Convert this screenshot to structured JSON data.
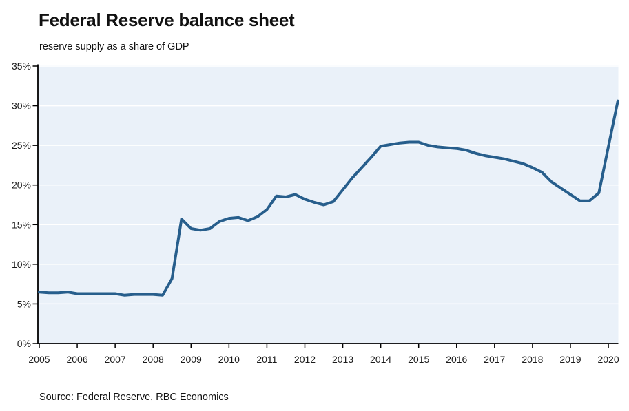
{
  "chart_data": {
    "type": "line",
    "title": "Federal Reserve balance sheet",
    "subtitle": "reserve supply as a share of GDP",
    "source": "Source: Federal Reserve, RBC Economics",
    "xlabel": "",
    "ylabel": "",
    "legend": "none",
    "grid": "horizontal white gridlines on light blue plot background",
    "xlim": [
      2005,
      2020.3
    ],
    "ylim": [
      0,
      35
    ],
    "x_ticks": [
      "2005",
      "2006",
      "2007",
      "2008",
      "2009",
      "2010",
      "2011",
      "2012",
      "2013",
      "2014",
      "2015",
      "2016",
      "2017",
      "2018",
      "2019",
      "2020"
    ],
    "y_ticks": [
      "0%",
      "5%",
      "10%",
      "15%",
      "20%",
      "25%",
      "30%",
      "35%"
    ],
    "colors": {
      "line": "#275e8c",
      "plot_bg": "#eaf1f9",
      "grid": "#ffffff",
      "axis": "#000000",
      "text": "#1a1a1a"
    },
    "series": [
      {
        "name": "Federal Reserve balance sheet, reserve supply as a share of GDP",
        "frequency": "quarterly",
        "x": [
          2005.0,
          2005.25,
          2005.5,
          2005.75,
          2006.0,
          2006.25,
          2006.5,
          2006.75,
          2007.0,
          2007.25,
          2007.5,
          2007.75,
          2008.0,
          2008.25,
          2008.5,
          2008.75,
          2009.0,
          2009.25,
          2009.5,
          2009.75,
          2010.0,
          2010.25,
          2010.5,
          2010.75,
          2011.0,
          2011.25,
          2011.5,
          2011.75,
          2012.0,
          2012.25,
          2012.5,
          2012.75,
          2013.0,
          2013.25,
          2013.5,
          2013.75,
          2014.0,
          2014.25,
          2014.5,
          2014.75,
          2015.0,
          2015.25,
          2015.5,
          2015.75,
          2016.0,
          2016.25,
          2016.5,
          2016.75,
          2017.0,
          2017.25,
          2017.5,
          2017.75,
          2018.0,
          2018.25,
          2018.5,
          2018.75,
          2019.0,
          2019.25,
          2019.5,
          2019.75,
          2020.0,
          2020.25
        ],
        "values": [
          6.5,
          6.4,
          6.4,
          6.5,
          6.3,
          6.3,
          6.3,
          6.3,
          6.3,
          6.1,
          6.2,
          6.2,
          6.2,
          6.1,
          8.2,
          15.7,
          14.5,
          14.3,
          14.5,
          15.4,
          15.8,
          15.9,
          15.5,
          16.0,
          16.9,
          18.6,
          18.5,
          18.8,
          18.2,
          17.8,
          17.5,
          17.9,
          19.4,
          20.9,
          22.2,
          23.5,
          24.9,
          25.1,
          25.3,
          25.4,
          25.4,
          25.0,
          24.8,
          24.7,
          24.6,
          24.4,
          24.0,
          23.7,
          23.5,
          23.3,
          23.0,
          22.7,
          22.2,
          21.6,
          20.4,
          19.6,
          18.8,
          18.0,
          18.0,
          19.0,
          24.8,
          30.6
        ]
      }
    ]
  }
}
